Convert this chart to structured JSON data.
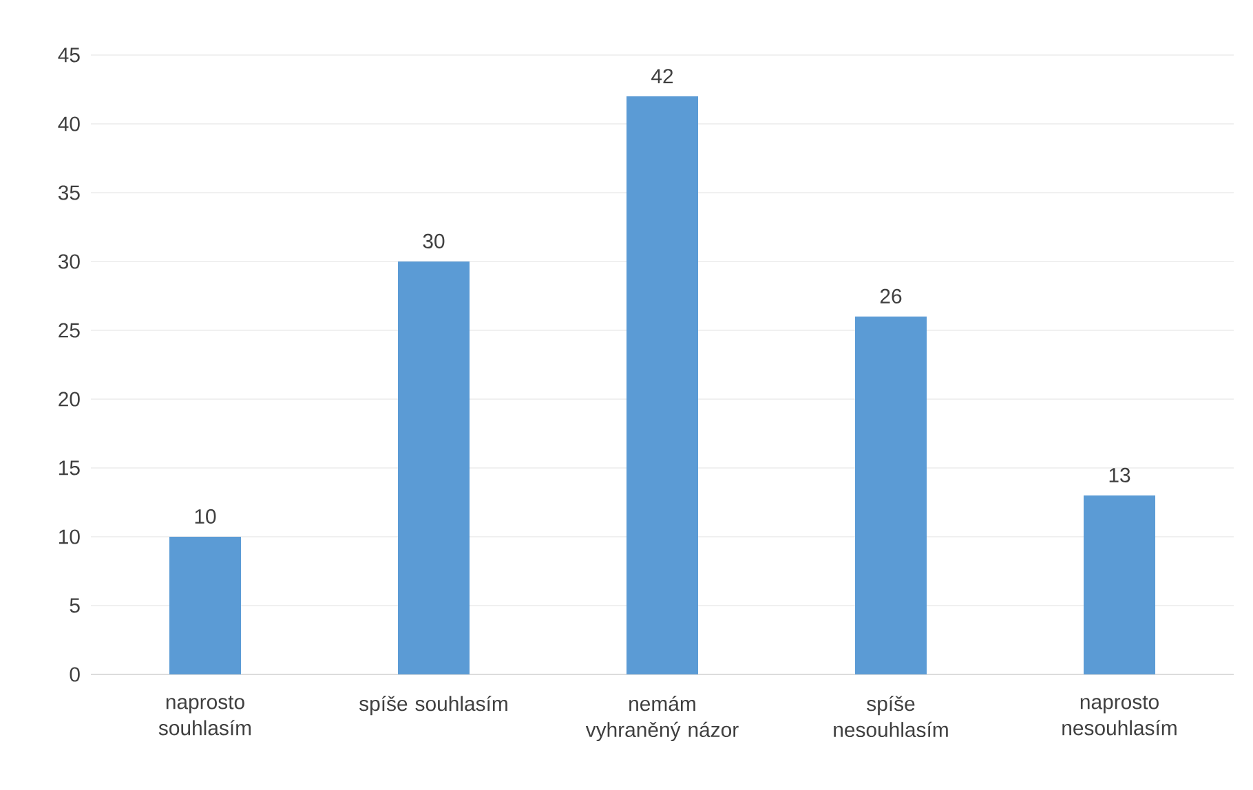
{
  "chart_data": {
    "type": "bar",
    "categories": [
      "naprosto souhlasím",
      "spíše souhlasím",
      "nemám vyhraněný názor",
      "spíše nesouhlasím",
      "naprosto nesouhlasím"
    ],
    "values": [
      10,
      30,
      42,
      26,
      13
    ],
    "color": "#5b9bd5",
    "ylim": [
      0,
      45
    ],
    "yticks": [
      0,
      5,
      10,
      15,
      20,
      25,
      30,
      35,
      40,
      45
    ],
    "grid": "y",
    "data_labels": true
  }
}
